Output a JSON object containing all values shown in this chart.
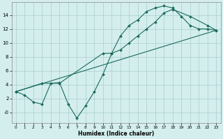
{
  "xlabel": "Humidex (Indice chaleur)",
  "bg_color": "#d4eeee",
  "grid_color": "#aacccc",
  "line_color": "#1a6b5a",
  "xlim": [
    -0.5,
    23.5
  ],
  "ylim": [
    -1.5,
    15.8
  ],
  "xticks": [
    0,
    1,
    2,
    3,
    4,
    5,
    6,
    7,
    8,
    9,
    10,
    11,
    12,
    13,
    14,
    15,
    16,
    17,
    18,
    19,
    20,
    21,
    22,
    23
  ],
  "yticks": [
    0,
    2,
    4,
    6,
    8,
    10,
    12,
    14
  ],
  "ytick_labels": [
    "-0",
    "2",
    "4",
    "6",
    "8",
    "10",
    "12",
    "14"
  ],
  "line1_x": [
    0,
    1,
    2,
    3,
    4,
    5,
    6,
    7,
    8,
    9,
    10,
    11,
    12,
    13,
    14,
    15,
    16,
    17,
    18,
    19,
    20,
    21,
    22,
    23
  ],
  "line1_y": [
    3.0,
    2.5,
    1.5,
    1.2,
    4.2,
    4.3,
    1.2,
    -0.8,
    1.0,
    3.0,
    5.5,
    8.5,
    11.0,
    12.5,
    13.3,
    14.5,
    15.0,
    15.3,
    15.0,
    13.8,
    12.5,
    12.0,
    12.0,
    11.8
  ],
  "line2_x": [
    0,
    3,
    5,
    10,
    11,
    12,
    13,
    14,
    15,
    16,
    17,
    18,
    20,
    22,
    23
  ],
  "line2_y": [
    3.0,
    4.2,
    4.2,
    8.5,
    8.5,
    9.0,
    10.0,
    11.0,
    12.0,
    13.0,
    14.3,
    14.8,
    13.8,
    12.5,
    11.8
  ],
  "line3_x": [
    0,
    23
  ],
  "line3_y": [
    3.0,
    11.8
  ]
}
